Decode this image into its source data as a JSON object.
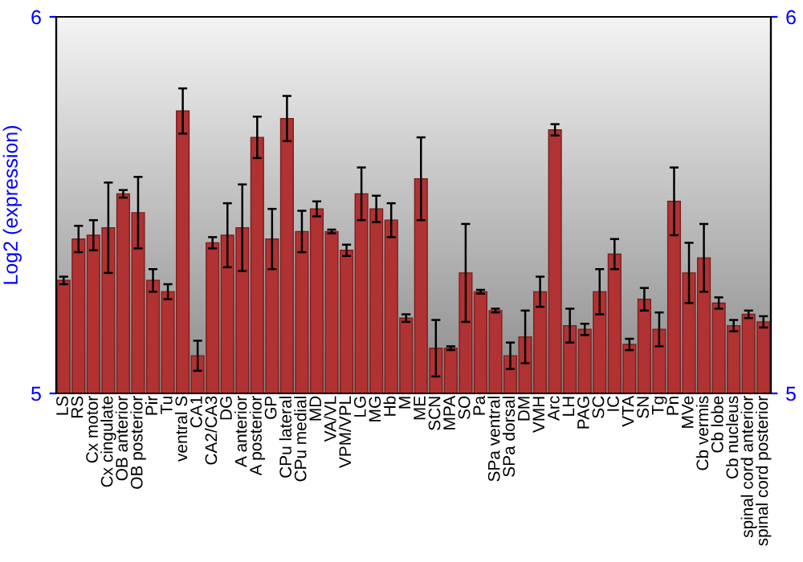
{
  "chart_data": {
    "type": "bar",
    "ylabel": "Log2 (expression)",
    "categories": [
      "LS",
      "RS",
      "Cx motor",
      "Cx cingulate",
      "OB anterior",
      "OB posterior",
      "Pir",
      "Tu",
      "ventral S",
      "CA1",
      "CA2/CA3",
      "DG",
      "A anterior",
      "A posterior",
      "GP",
      "CPu lateral",
      "CPu medial",
      "MD",
      "VA/VL",
      "VPM/VPL",
      "LG",
      "MG",
      "Hb",
      "M",
      "ME",
      "SCN",
      "MPA",
      "SO",
      "Pa",
      "SPa ventral",
      "SPa dorsal",
      "DM",
      "VMH",
      "Arc",
      "LH",
      "PAG",
      "SC",
      "IC",
      "VTA",
      "SN",
      "Tg",
      "Pn",
      "MVe",
      "Cb vermis",
      "Cb lobe",
      "Cb nucleus",
      "spinal cord anterior",
      "spinal cord posterior"
    ],
    "values": [
      5.3,
      5.41,
      5.42,
      5.44,
      5.53,
      5.48,
      5.3,
      5.27,
      5.75,
      5.1,
      5.4,
      5.42,
      5.44,
      5.68,
      5.41,
      5.73,
      5.43,
      5.49,
      5.43,
      5.38,
      5.53,
      5.49,
      5.46,
      5.2,
      5.57,
      5.12,
      5.12,
      5.32,
      5.27,
      5.22,
      5.1,
      5.15,
      5.27,
      5.7,
      5.18,
      5.17,
      5.27,
      5.37,
      5.13,
      5.25,
      5.17,
      5.51,
      5.32,
      5.36,
      5.24,
      5.18,
      5.21,
      5.19
    ],
    "errors": [
      0.01,
      0.035,
      0.04,
      0.12,
      0.01,
      0.095,
      0.03,
      0.02,
      0.06,
      0.04,
      0.015,
      0.085,
      0.115,
      0.055,
      0.08,
      0.06,
      0.055,
      0.02,
      0.005,
      0.015,
      0.07,
      0.035,
      0.045,
      0.01,
      0.11,
      0.075,
      0.005,
      0.13,
      0.005,
      0.005,
      0.035,
      0.07,
      0.04,
      0.015,
      0.045,
      0.015,
      0.06,
      0.04,
      0.015,
      0.03,
      0.045,
      0.09,
      0.08,
      0.09,
      0.015,
      0.015,
      0.01,
      0.015
    ],
    "color": "#b03232",
    "ylim": [
      5,
      6
    ],
    "yticks": [
      5,
      6
    ],
    "y2lim": [
      5,
      6
    ],
    "y2ticks": [
      5,
      6
    ]
  }
}
